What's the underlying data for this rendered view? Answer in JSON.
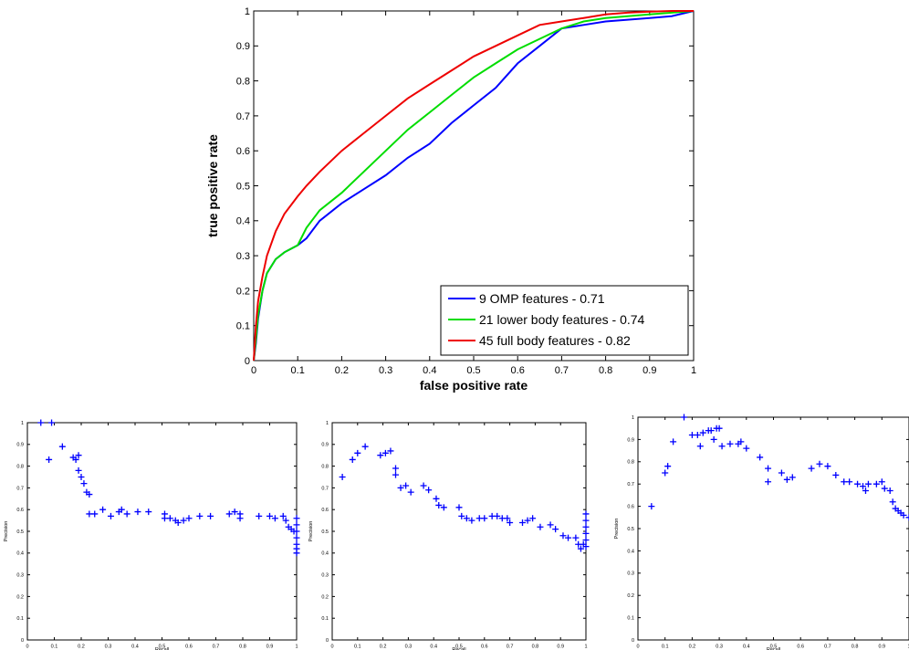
{
  "chart_data": [
    {
      "type": "line",
      "title": "",
      "xlabel": "false positive rate",
      "ylabel": "true positive rate",
      "xlim": [
        0,
        1
      ],
      "ylim": [
        0,
        1
      ],
      "xticks": [
        "0",
        "0.1",
        "0.2",
        "0.3",
        "0.4",
        "0.5",
        "0.6",
        "0.7",
        "0.8",
        "0.9",
        "1"
      ],
      "yticks": [
        "0",
        "0.1",
        "0.2",
        "0.3",
        "0.4",
        "0.5",
        "0.6",
        "0.7",
        "0.8",
        "0.9",
        "1"
      ],
      "grid": false,
      "legend_position": "bottom-right",
      "series": [
        {
          "name": "9 OMP features - 0.71",
          "color": "#0000ff",
          "x": [
            0,
            0.005,
            0.01,
            0.02,
            0.03,
            0.05,
            0.07,
            0.1,
            0.12,
            0.15,
            0.2,
            0.25,
            0.3,
            0.35,
            0.4,
            0.45,
            0.5,
            0.55,
            0.6,
            0.65,
            0.7,
            0.75,
            0.8,
            0.85,
            0.9,
            0.95,
            1
          ],
          "y": [
            0,
            0.05,
            0.12,
            0.2,
            0.25,
            0.29,
            0.31,
            0.33,
            0.35,
            0.4,
            0.45,
            0.49,
            0.53,
            0.58,
            0.62,
            0.68,
            0.73,
            0.78,
            0.85,
            0.9,
            0.95,
            0.96,
            0.97,
            0.975,
            0.98,
            0.985,
            1
          ]
        },
        {
          "name": "21 lower body features - 0.74",
          "color": "#00dd00",
          "x": [
            0,
            0.005,
            0.01,
            0.02,
            0.03,
            0.05,
            0.07,
            0.1,
            0.12,
            0.15,
            0.2,
            0.25,
            0.3,
            0.35,
            0.4,
            0.45,
            0.5,
            0.55,
            0.6,
            0.65,
            0.7,
            0.75,
            0.8,
            0.85,
            0.9,
            0.95,
            1
          ],
          "y": [
            0,
            0.06,
            0.13,
            0.2,
            0.25,
            0.29,
            0.31,
            0.33,
            0.38,
            0.43,
            0.48,
            0.54,
            0.6,
            0.66,
            0.71,
            0.76,
            0.81,
            0.85,
            0.89,
            0.92,
            0.95,
            0.97,
            0.98,
            0.985,
            0.99,
            0.995,
            1
          ]
        },
        {
          "name": "45 full body features - 0.82",
          "color": "#ee0000",
          "x": [
            0,
            0.005,
            0.01,
            0.02,
            0.03,
            0.05,
            0.07,
            0.1,
            0.12,
            0.15,
            0.2,
            0.25,
            0.3,
            0.35,
            0.4,
            0.45,
            0.5,
            0.55,
            0.6,
            0.65,
            0.7,
            0.75,
            0.8,
            0.85,
            0.9,
            0.95,
            1
          ],
          "y": [
            0,
            0.1,
            0.17,
            0.24,
            0.3,
            0.37,
            0.42,
            0.47,
            0.5,
            0.54,
            0.6,
            0.65,
            0.7,
            0.75,
            0.79,
            0.83,
            0.87,
            0.9,
            0.93,
            0.96,
            0.97,
            0.98,
            0.99,
            0.995,
            0.998,
            1,
            1
          ]
        }
      ]
    },
    {
      "type": "scatter",
      "title": "",
      "xlabel": "Recall",
      "ylabel": "Precision",
      "xlim": [
        0,
        1
      ],
      "ylim": [
        0,
        1
      ],
      "xticks": [
        "0",
        "0.1",
        "0.2",
        "0.3",
        "0.4",
        "0.5",
        "0.6",
        "0.7",
        "0.8",
        "0.9",
        "1"
      ],
      "yticks": [
        "0",
        "0.1",
        "0.2",
        "0.3",
        "0.4",
        "0.5",
        "0.6",
        "0.7",
        "0.8",
        "0.9",
        "1"
      ],
      "grid": false,
      "marker": "+",
      "color": "#0000ff",
      "points": [
        [
          0.05,
          1.0
        ],
        [
          0.09,
          1.0
        ],
        [
          0.08,
          0.83
        ],
        [
          0.13,
          0.89
        ],
        [
          0.17,
          0.84
        ],
        [
          0.19,
          0.85
        ],
        [
          0.18,
          0.83
        ],
        [
          0.19,
          0.78
        ],
        [
          0.2,
          0.75
        ],
        [
          0.21,
          0.72
        ],
        [
          0.22,
          0.68
        ],
        [
          0.23,
          0.67
        ],
        [
          0.23,
          0.58
        ],
        [
          0.25,
          0.58
        ],
        [
          0.28,
          0.6
        ],
        [
          0.31,
          0.57
        ],
        [
          0.34,
          0.59
        ],
        [
          0.35,
          0.6
        ],
        [
          0.37,
          0.58
        ],
        [
          0.41,
          0.59
        ],
        [
          0.45,
          0.59
        ],
        [
          0.51,
          0.58
        ],
        [
          0.51,
          0.56
        ],
        [
          0.53,
          0.56
        ],
        [
          0.55,
          0.55
        ],
        [
          0.56,
          0.54
        ],
        [
          0.58,
          0.55
        ],
        [
          0.6,
          0.56
        ],
        [
          0.64,
          0.57
        ],
        [
          0.68,
          0.57
        ],
        [
          0.75,
          0.58
        ],
        [
          0.77,
          0.59
        ],
        [
          0.79,
          0.58
        ],
        [
          0.79,
          0.56
        ],
        [
          0.86,
          0.57
        ],
        [
          0.9,
          0.57
        ],
        [
          0.92,
          0.56
        ],
        [
          0.95,
          0.57
        ],
        [
          0.96,
          0.55
        ],
        [
          0.97,
          0.52
        ],
        [
          0.98,
          0.51
        ],
        [
          0.99,
          0.5
        ],
        [
          1.0,
          0.56
        ],
        [
          1.0,
          0.53
        ],
        [
          1.0,
          0.5
        ],
        [
          1.0,
          0.47
        ],
        [
          1.0,
          0.44
        ],
        [
          1.0,
          0.42
        ],
        [
          1.0,
          0.4
        ]
      ]
    },
    {
      "type": "scatter",
      "title": "",
      "xlabel": "Recall",
      "ylabel": "Precision",
      "xlim": [
        0,
        1
      ],
      "ylim": [
        0,
        1
      ],
      "xticks": [
        "0",
        "0.1",
        "0.2",
        "0.3",
        "0.4",
        "0.5",
        "0.6",
        "0.7",
        "0.8",
        "0.9",
        "1"
      ],
      "yticks": [
        "0",
        "0.1",
        "0.2",
        "0.3",
        "0.4",
        "0.5",
        "0.6",
        "0.7",
        "0.8",
        "0.9",
        "1"
      ],
      "grid": false,
      "marker": "+",
      "color": "#0000ff",
      "points": [
        [
          0.04,
          0.75
        ],
        [
          0.08,
          0.83
        ],
        [
          0.1,
          0.86
        ],
        [
          0.13,
          0.89
        ],
        [
          0.19,
          0.85
        ],
        [
          0.21,
          0.86
        ],
        [
          0.23,
          0.87
        ],
        [
          0.25,
          0.79
        ],
        [
          0.25,
          0.76
        ],
        [
          0.27,
          0.7
        ],
        [
          0.29,
          0.71
        ],
        [
          0.31,
          0.68
        ],
        [
          0.36,
          0.71
        ],
        [
          0.38,
          0.69
        ],
        [
          0.41,
          0.65
        ],
        [
          0.42,
          0.62
        ],
        [
          0.44,
          0.61
        ],
        [
          0.5,
          0.61
        ],
        [
          0.51,
          0.57
        ],
        [
          0.53,
          0.56
        ],
        [
          0.55,
          0.55
        ],
        [
          0.58,
          0.56
        ],
        [
          0.6,
          0.56
        ],
        [
          0.63,
          0.57
        ],
        [
          0.65,
          0.57
        ],
        [
          0.67,
          0.56
        ],
        [
          0.69,
          0.56
        ],
        [
          0.7,
          0.54
        ],
        [
          0.75,
          0.54
        ],
        [
          0.77,
          0.55
        ],
        [
          0.79,
          0.56
        ],
        [
          0.82,
          0.52
        ],
        [
          0.86,
          0.53
        ],
        [
          0.88,
          0.51
        ],
        [
          0.91,
          0.48
        ],
        [
          0.93,
          0.47
        ],
        [
          0.96,
          0.47
        ],
        [
          0.97,
          0.44
        ],
        [
          0.98,
          0.42
        ],
        [
          0.99,
          0.44
        ],
        [
          1.0,
          0.58
        ],
        [
          1.0,
          0.55
        ],
        [
          1.0,
          0.52
        ],
        [
          1.0,
          0.49
        ],
        [
          1.0,
          0.46
        ],
        [
          1.0,
          0.43
        ]
      ]
    },
    {
      "type": "scatter",
      "title": "",
      "xlabel": "Recall",
      "ylabel": "Precision",
      "xlim": [
        0,
        1
      ],
      "ylim": [
        0,
        1
      ],
      "xticks": [
        "0",
        "0.1",
        "0.2",
        "0.3",
        "0.4",
        "0.5",
        "0.6",
        "0.7",
        "0.8",
        "0.9",
        "1"
      ],
      "yticks": [
        "0",
        "0.1",
        "0.2",
        "0.3",
        "0.4",
        "0.5",
        "0.6",
        "0.7",
        "0.8",
        "0.9",
        "1"
      ],
      "grid": false,
      "marker": "+",
      "color": "#0000ff",
      "points": [
        [
          0.05,
          0.6
        ],
        [
          0.1,
          0.75
        ],
        [
          0.11,
          0.78
        ],
        [
          0.13,
          0.89
        ],
        [
          0.17,
          1.0
        ],
        [
          0.2,
          0.92
        ],
        [
          0.22,
          0.92
        ],
        [
          0.23,
          0.87
        ],
        [
          0.24,
          0.93
        ],
        [
          0.26,
          0.94
        ],
        [
          0.27,
          0.94
        ],
        [
          0.28,
          0.9
        ],
        [
          0.29,
          0.95
        ],
        [
          0.3,
          0.95
        ],
        [
          0.31,
          0.87
        ],
        [
          0.34,
          0.88
        ],
        [
          0.37,
          0.88
        ],
        [
          0.38,
          0.89
        ],
        [
          0.4,
          0.86
        ],
        [
          0.45,
          0.82
        ],
        [
          0.48,
          0.77
        ],
        [
          0.48,
          0.71
        ],
        [
          0.53,
          0.75
        ],
        [
          0.55,
          0.72
        ],
        [
          0.57,
          0.73
        ],
        [
          0.64,
          0.77
        ],
        [
          0.67,
          0.79
        ],
        [
          0.7,
          0.78
        ],
        [
          0.73,
          0.74
        ],
        [
          0.76,
          0.71
        ],
        [
          0.78,
          0.71
        ],
        [
          0.81,
          0.7
        ],
        [
          0.83,
          0.69
        ],
        [
          0.84,
          0.67
        ],
        [
          0.85,
          0.7
        ],
        [
          0.88,
          0.7
        ],
        [
          0.9,
          0.71
        ],
        [
          0.91,
          0.68
        ],
        [
          0.93,
          0.67
        ],
        [
          0.94,
          0.62
        ],
        [
          0.95,
          0.59
        ],
        [
          0.96,
          0.58
        ],
        [
          0.97,
          0.57
        ],
        [
          0.98,
          0.56
        ],
        [
          1.0,
          0.55
        ]
      ]
    }
  ]
}
